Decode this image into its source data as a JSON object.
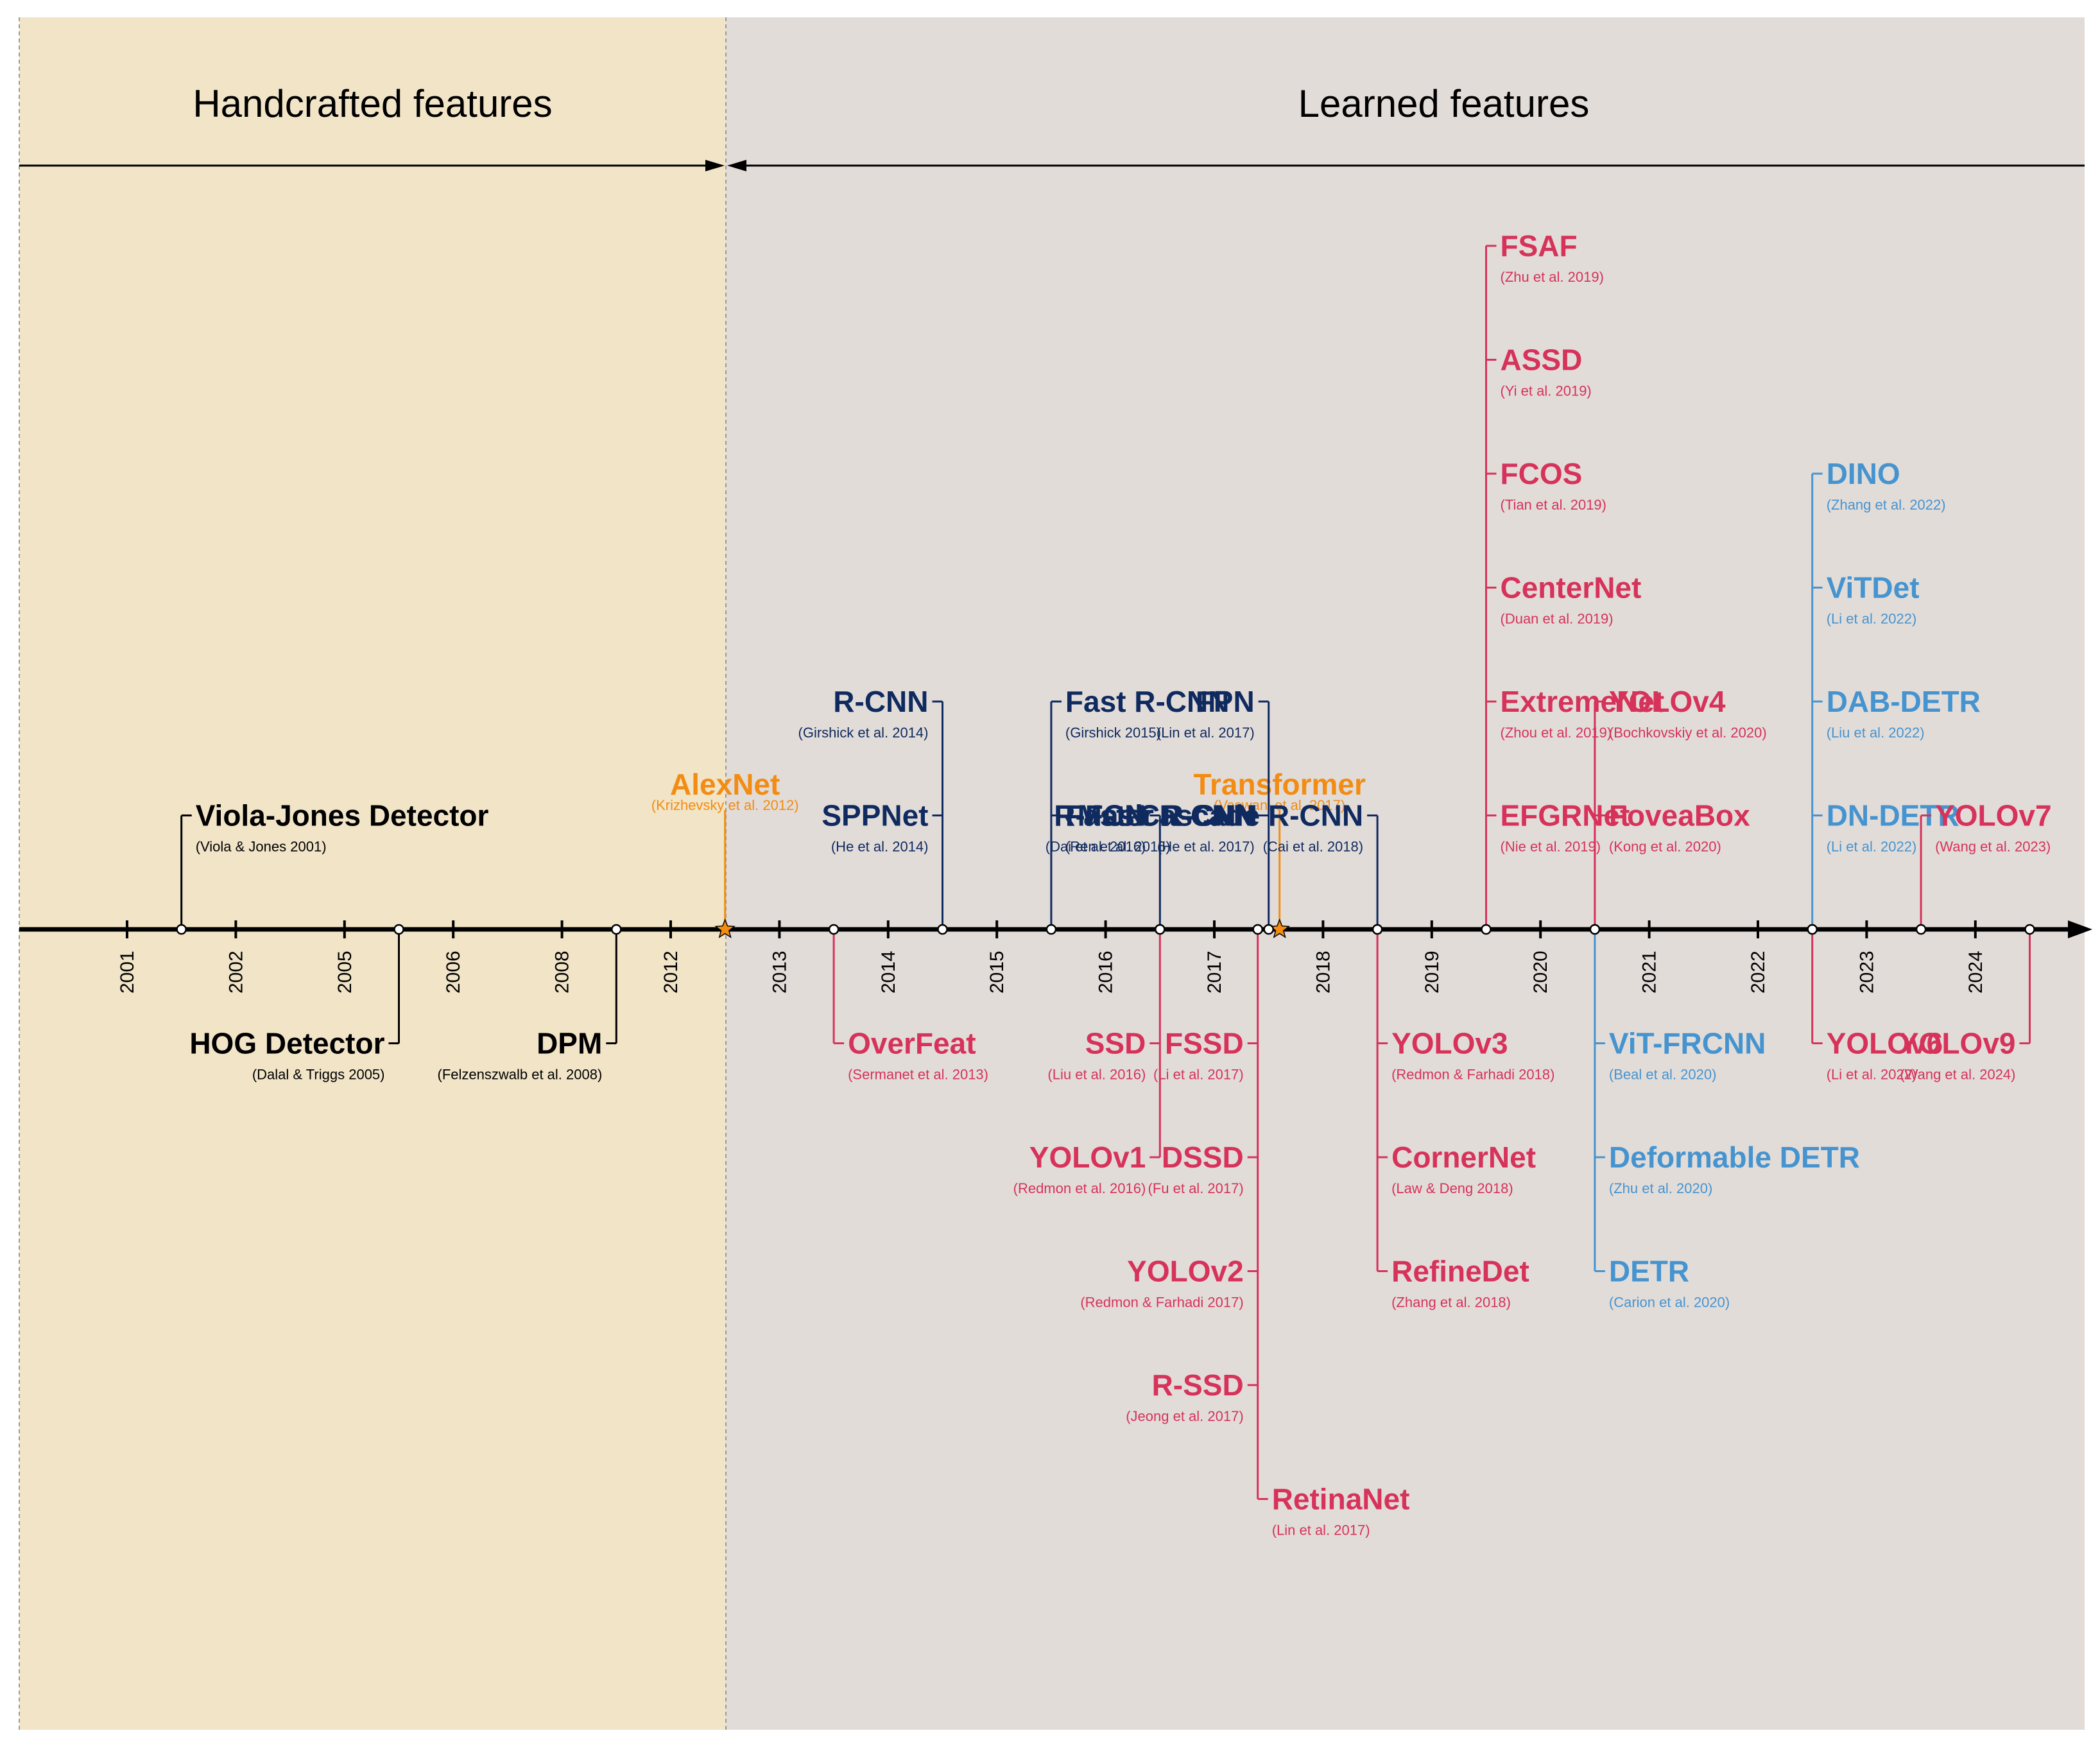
{
  "colors": {
    "black": "#000000",
    "navy": "#0f2a5f",
    "red": "#d6325a",
    "blue": "#4694cf",
    "orange": "#f28c12",
    "handcrafted_bg": "#f1e4c7",
    "learned_bg": "#e2dcd9",
    "axis": "#000000"
  },
  "eras": [
    {
      "key": "handcrafted",
      "label": "Handcrafted features"
    },
    {
      "key": "learned",
      "label": "Learned features"
    }
  ],
  "years": [
    "2001",
    "2002",
    "2005",
    "2006",
    "2008",
    "2012",
    "2013",
    "2014",
    "2015",
    "2016",
    "2017",
    "2018",
    "2019",
    "2020",
    "2021",
    "2022",
    "2023",
    "2024"
  ],
  "milestones": [
    {
      "name": "AlexNet",
      "citation": "(Krizhevsky et al. 2012)",
      "after_year": "2012",
      "marker": "star",
      "color": "orange"
    },
    {
      "name": "Transformer",
      "citation": "(Vaswani et al. 2017)",
      "after_year": "2017",
      "marker": "star",
      "color": "orange"
    }
  ],
  "detector_groups": [
    {
      "after_year": "2001",
      "side": "above",
      "color": "black",
      "branch": "right",
      "items": [
        {
          "name": "Viola-Jones Detector",
          "citation": "(Viola & Jones 2001)"
        }
      ]
    },
    {
      "after_year": "2005",
      "side": "below",
      "color": "black",
      "branch": "left",
      "items": [
        {
          "name": "HOG Detector",
          "citation": "(Dalal & Triggs 2005)"
        }
      ]
    },
    {
      "after_year": "2008",
      "side": "below",
      "color": "black",
      "branch": "left",
      "items": [
        {
          "name": "DPM",
          "citation": "(Felzenszwalb et al. 2008)"
        }
      ]
    },
    {
      "after_year": "2013",
      "side": "below",
      "color": "red",
      "branch": "right",
      "items": [
        {
          "name": "OverFeat",
          "citation": "(Sermanet et al. 2013)"
        }
      ]
    },
    {
      "after_year": "2014",
      "side": "above",
      "color": "navy",
      "branch": "left",
      "items": [
        {
          "name": "SPPNet",
          "citation": "(He et al. 2014)"
        },
        {
          "name": "R-CNN",
          "citation": "(Girshick et al. 2014)"
        }
      ]
    },
    {
      "after_year": "2015",
      "side": "above",
      "color": "navy",
      "branch": "right",
      "items": [
        {
          "name": "Faster R-CNN",
          "citation": "(Ren et al. 2015)"
        },
        {
          "name": "Fast R-CNN",
          "citation": "(Girshick 2015)"
        }
      ]
    },
    {
      "after_year": "2016",
      "side": "above",
      "color": "navy",
      "branch": "left",
      "items": [
        {
          "name": "R-FCN",
          "citation": "(Dai et al. 2016)"
        }
      ]
    },
    {
      "after_year": "2016",
      "side": "below",
      "color": "red",
      "branch": "left",
      "items": [
        {
          "name": "SSD",
          "citation": "(Liu et al. 2016)"
        },
        {
          "name": "YOLOv1",
          "citation": "(Redmon et al. 2016)"
        }
      ]
    },
    {
      "after_year": "2017",
      "side": "above",
      "color": "navy",
      "branch": "left",
      "items": [
        {
          "name": "Mask R-CNN",
          "citation": "(He et al. 2017)"
        },
        {
          "name": "FPN",
          "citation": "(Lin et al. 2017)"
        }
      ]
    },
    {
      "after_year": "2017",
      "side": "below",
      "color": "red",
      "branch": "left",
      "items": [
        {
          "name": "FSSD",
          "citation": "(Li et al. 2017)"
        },
        {
          "name": "DSSD",
          "citation": "(Fu et al. 2017)"
        },
        {
          "name": "YOLOv2",
          "citation": "(Redmon & Farhadi 2017)"
        },
        {
          "name": "R-SSD",
          "citation": "(Jeong et al. 2017)"
        },
        {
          "name": "RetinaNet",
          "citation": "(Lin et al. 2017)",
          "branch": "right"
        }
      ]
    },
    {
      "after_year": "2018",
      "side": "above",
      "color": "navy",
      "branch": "left",
      "items": [
        {
          "name": "Cascade R-CNN",
          "citation": "(Cai et al. 2018)"
        }
      ]
    },
    {
      "after_year": "2018",
      "side": "below",
      "color": "red",
      "branch": "right",
      "items": [
        {
          "name": "YOLOv3",
          "citation": "(Redmon & Farhadi 2018)"
        },
        {
          "name": "CornerNet",
          "citation": "(Law & Deng 2018)"
        },
        {
          "name": "RefineDet",
          "citation": "(Zhang et al. 2018)"
        }
      ]
    },
    {
      "after_year": "2019",
      "side": "above",
      "color": "red",
      "branch": "right",
      "items": [
        {
          "name": "EFGRNet",
          "citation": "(Nie et al. 2019)"
        },
        {
          "name": "ExtremeNet",
          "citation": "(Zhou et al. 2019)"
        },
        {
          "name": "CenterNet",
          "citation": "(Duan et al. 2019)"
        },
        {
          "name": "FCOS",
          "citation": "(Tian et al. 2019)"
        },
        {
          "name": "ASSD",
          "citation": "(Yi et al. 2019)"
        },
        {
          "name": "FSAF",
          "citation": "(Zhu et al. 2019)"
        }
      ]
    },
    {
      "after_year": "2020",
      "side": "above",
      "color": "red",
      "branch": "right",
      "items": [
        {
          "name": "FoveaBox",
          "citation": "(Kong et al. 2020)"
        },
        {
          "name": "YOLOv4",
          "citation": "(Bochkovskiy et al. 2020)"
        }
      ]
    },
    {
      "after_year": "2020",
      "side": "below",
      "color": "blue",
      "branch": "right",
      "items": [
        {
          "name": "ViT-FRCNN",
          "citation": "(Beal et al. 2020)"
        },
        {
          "name": "Deformable DETR",
          "citation": "(Zhu et al. 2020)"
        },
        {
          "name": "DETR",
          "citation": "(Carion et al. 2020)"
        }
      ]
    },
    {
      "after_year": "2022",
      "side": "above",
      "color": "blue",
      "branch": "right",
      "items": [
        {
          "name": "DN-DETR",
          "citation": "(Li et al. 2022)"
        },
        {
          "name": "DAB-DETR",
          "citation": "(Liu et al. 2022)"
        },
        {
          "name": "ViTDet",
          "citation": "(Li et al. 2022)"
        },
        {
          "name": "DINO",
          "citation": "(Zhang et al. 2022)"
        }
      ]
    },
    {
      "after_year": "2022",
      "side": "below",
      "color": "red",
      "branch": "right",
      "items": [
        {
          "name": "YOLOv6",
          "citation": "(Li et al. 2022)"
        }
      ]
    },
    {
      "after_year": "2023",
      "side": "above",
      "color": "red",
      "branch": "right",
      "items": [
        {
          "name": "YOLOv7",
          "citation": "(Wang et al. 2023)"
        }
      ]
    },
    {
      "after_year": "2024",
      "side": "below",
      "color": "red",
      "branch": "left",
      "items": [
        {
          "name": "YOLOv9",
          "citation": "(Wang et al. 2024)"
        }
      ]
    }
  ]
}
